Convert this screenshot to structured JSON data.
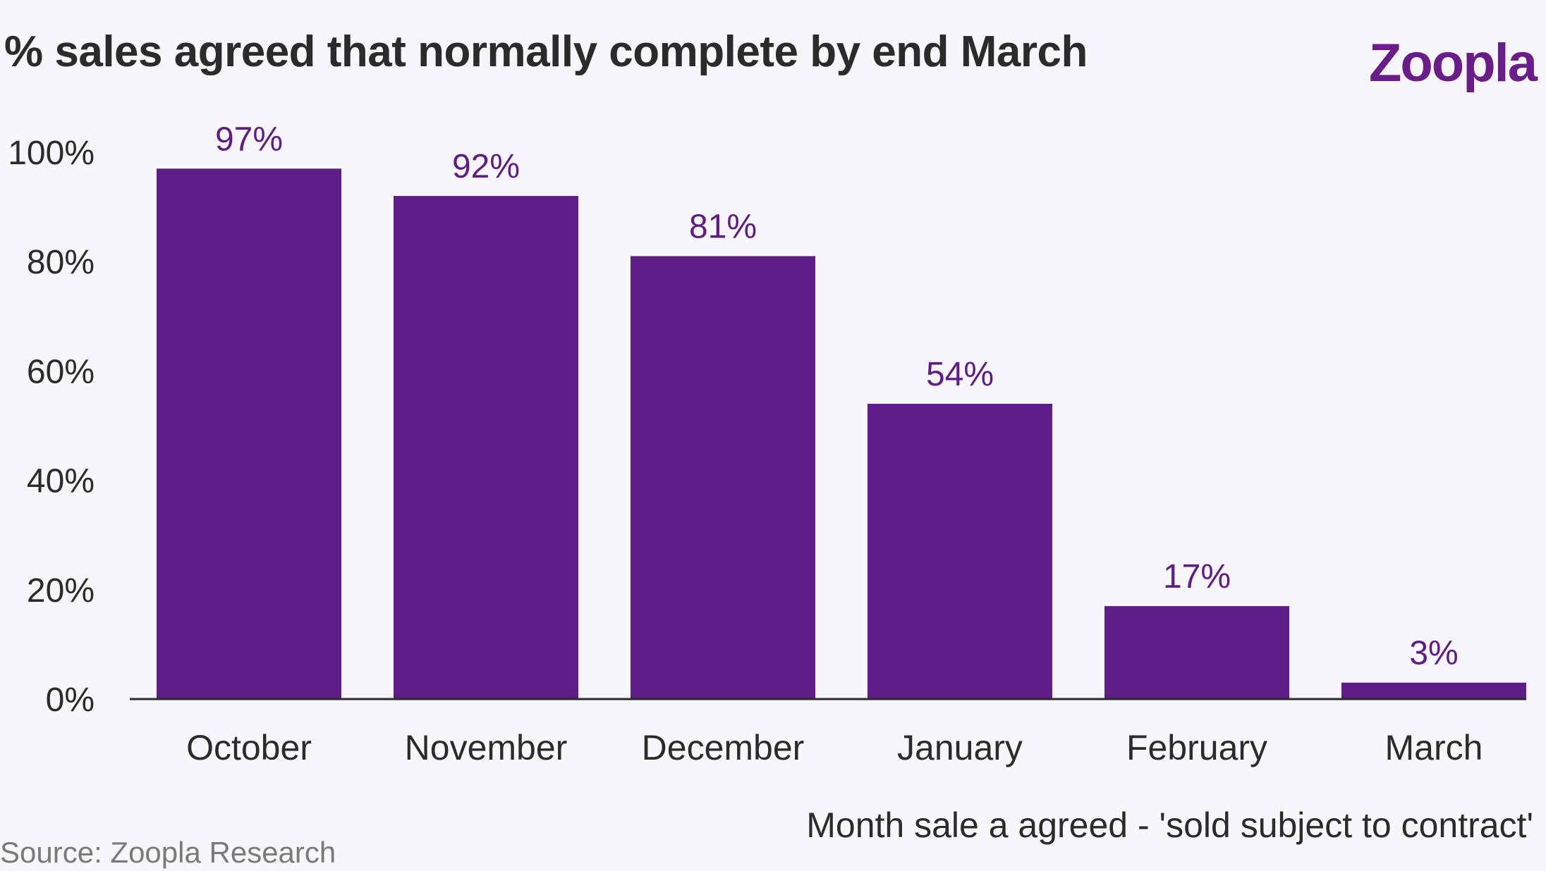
{
  "logo_text": "Zoopla",
  "source": "Source: Zoopla Research",
  "colors": {
    "bar": "#5e1d86",
    "logo": "#6a1d8a",
    "text": "#2b2b2b",
    "background": "#f7f7f9"
  },
  "chart_data": {
    "type": "bar",
    "title": "% sales agreed that normally complete by end March",
    "xlabel": "Month sale a agreed - 'sold subject to contract'",
    "ylabel": "",
    "categories": [
      "October",
      "November",
      "December",
      "January",
      "February",
      "March"
    ],
    "values": [
      97,
      92,
      81,
      54,
      17,
      3
    ],
    "data_labels": [
      "97%",
      "92%",
      "81%",
      "54%",
      "17%",
      "3%"
    ],
    "ylim": [
      0,
      100
    ],
    "yticks": [
      0,
      20,
      40,
      60,
      80,
      100
    ],
    "ytick_labels": [
      "0%",
      "20%",
      "40%",
      "60%",
      "80%",
      "100%"
    ],
    "grid": false,
    "legend": "none"
  }
}
